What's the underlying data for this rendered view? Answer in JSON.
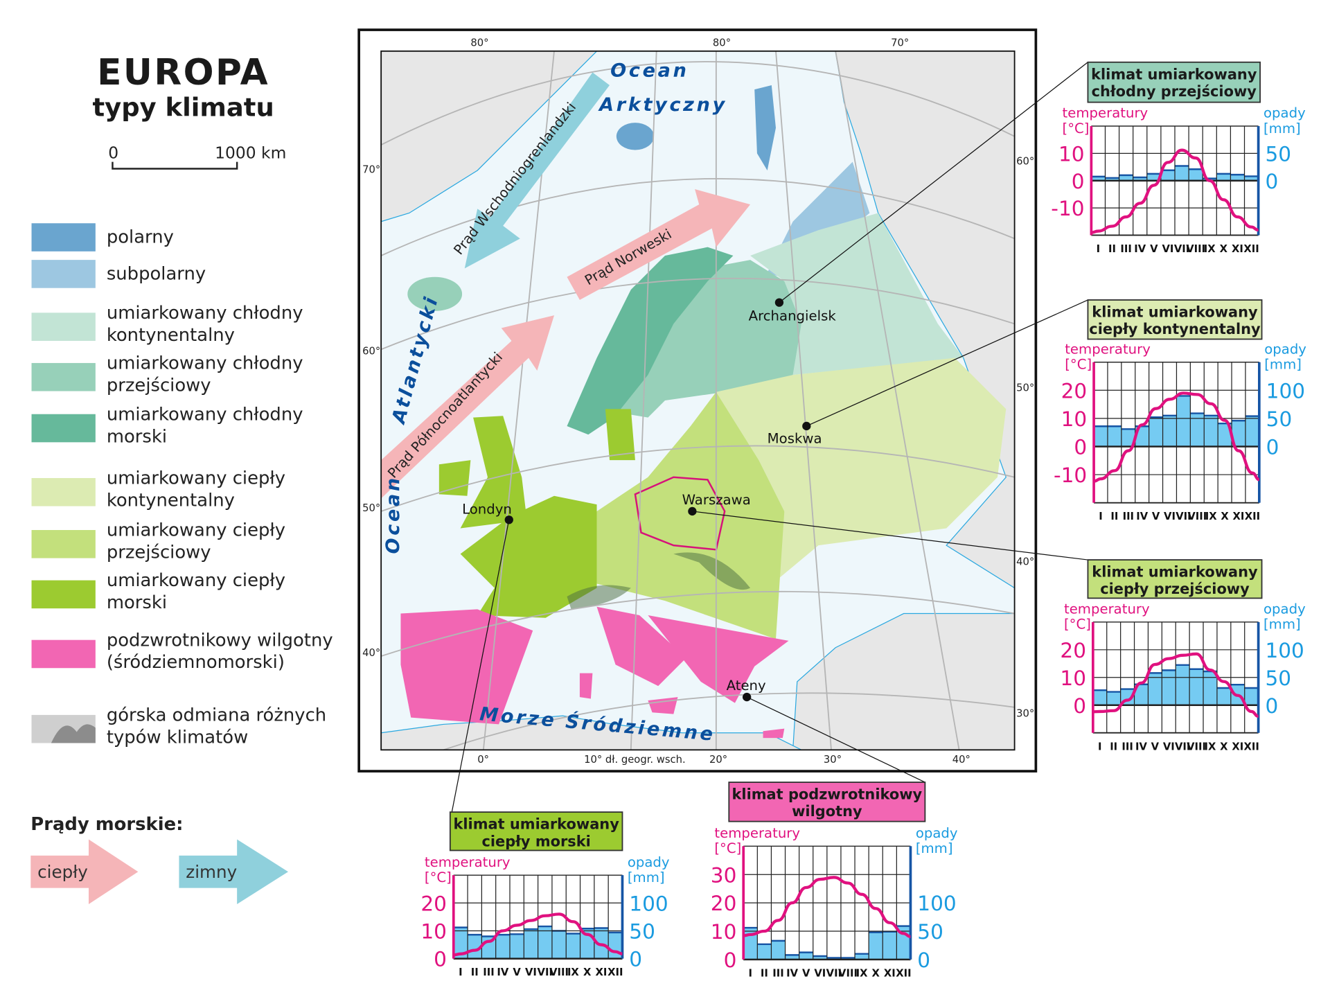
{
  "title": "EUROPA",
  "subtitle": "typy klimatu",
  "scale_bar": {
    "start": "0",
    "end": "1000 km"
  },
  "legend": [
    {
      "lines": [
        "polarny"
      ],
      "color": "#6aa5cf"
    },
    {
      "lines": [
        "subpolarny"
      ],
      "color": "#9dc7e1"
    },
    {
      "lines": [
        "umiarkowany chłodny",
        "kontynentalny"
      ],
      "color": "#c2e4d5"
    },
    {
      "lines": [
        "umiarkowany chłodny",
        "przejściowy"
      ],
      "color": "#97d0b9"
    },
    {
      "lines": [
        "umiarkowany chłodny",
        "morski"
      ],
      "color": "#66b99b"
    },
    {
      "lines": [
        "umiarkowany ciepły",
        "kontynentalny"
      ],
      "color": "#dcebb2"
    },
    {
      "lines": [
        "umiarkowany ciepły",
        "przejściowy"
      ],
      "color": "#c3e07c"
    },
    {
      "lines": [
        "umiarkowany ciepły",
        "morski"
      ],
      "color": "#9ccb30"
    },
    {
      "lines": [
        "podzwrotnikowy wilgotny",
        "(śródziemnomorski)"
      ],
      "color": "#f266b3"
    },
    {
      "lines": [
        "górska odmiana różnych",
        "typów klimatów"
      ],
      "color": "#bdbdbd"
    }
  ],
  "currents_legend": {
    "heading": "Prądy morskie:",
    "warm": "ciepły",
    "cold": "zimny",
    "warm_color": "#f5b5b8",
    "cold_color": "#8fd0dc"
  },
  "map": {
    "oceans": {
      "arctic_1": "Ocean",
      "arctic_2": "Arktyczny",
      "atlantic_1": "Ocean",
      "atlantic_2": "Atlantycki",
      "med": "Morze Śródziemne"
    },
    "currents": {
      "east_greenland": "Prąd Wschodniogrenlandzki",
      "norwegian": "Prąd Norweski",
      "north_atlantic": "Prąd Północnoatlantycki"
    },
    "cities": {
      "archangielsk": "Archangielsk",
      "moskwa": "Moskwa",
      "warszawa": "Warszawa",
      "londyn": "Londyn",
      "ateny": "Ateny"
    },
    "degrees": {
      "top": [
        "80°",
        "80°",
        "70°"
      ],
      "left": [
        "70°",
        "60°",
        "50°",
        "40°"
      ],
      "right": [
        "60°",
        "50°",
        "40°",
        "30°"
      ],
      "bottom": [
        "0°",
        "10° dł. geogr. wsch.",
        "20°",
        "30°",
        "40°"
      ]
    }
  },
  "chart_data": [
    {
      "type": "bar+line",
      "title": [
        "klimat umiarkowany",
        "chłodny przejściowy"
      ],
      "header_color": "#97d0b9",
      "temp_label": "temperatury",
      "temp_unit": "[°C]",
      "precip_label": "opady",
      "precip_unit": "[mm]",
      "months": [
        "I",
        "II",
        "III",
        "IV",
        "V",
        "VI",
        "VII",
        "VIII",
        "IX",
        "X",
        "XI",
        "XII"
      ],
      "temperature": [
        -18.5,
        -16.7,
        -13.3,
        -8.3,
        -1.7,
        6.7,
        11.2,
        8.3,
        0,
        -7,
        -13.3,
        -17
      ],
      "precipitation": [
        7.5,
        5,
        10,
        6,
        12.5,
        19,
        27,
        21,
        4,
        12.5,
        11,
        8
      ],
      "temp_range": [
        -20,
        20
      ],
      "temp_ticks": [
        10,
        0,
        -10
      ],
      "precip_ticks": [
        50,
        0
      ]
    },
    {
      "type": "bar+line",
      "title": [
        "klimat umiarkowany",
        "ciepły kontynentalny"
      ],
      "header_color": "#dcebb2",
      "temp_label": "temperatury",
      "temp_unit": "[°C]",
      "precip_label": "opady",
      "precip_unit": "[mm]",
      "months": [
        "I",
        "II",
        "III",
        "IV",
        "V",
        "VI",
        "VII",
        "VIII",
        "IX",
        "X",
        "XI",
        "XII"
      ],
      "temperature": [
        -11.5,
        -8.6,
        -1.5,
        7.7,
        13.5,
        16.8,
        19,
        18.5,
        15.2,
        9.3,
        -1.5,
        -9.4
      ],
      "precipitation": [
        36,
        36,
        31,
        36,
        52,
        55,
        90,
        59,
        55,
        41,
        46,
        54
      ],
      "temp_range": [
        -20,
        30
      ],
      "temp_ticks": [
        20,
        10,
        0,
        -10
      ],
      "precip_ticks": [
        100,
        50,
        0
      ]
    },
    {
      "type": "bar+line",
      "title": [
        "klimat umiarkowany",
        "ciepły przejściowy"
      ],
      "header_color": "#c3e07c",
      "temp_label": "temperatury",
      "temp_unit": "[°C]",
      "precip_label": "opady",
      "precip_unit": "[mm]",
      "months": [
        "I",
        "II",
        "III",
        "IV",
        "V",
        "VI",
        "VII",
        "VIII",
        "IX",
        "X",
        "XI",
        "XII"
      ],
      "temperature": [
        -2.3,
        -2,
        1.8,
        8,
        14.7,
        16.8,
        18,
        18.5,
        12.7,
        8.5,
        3.5,
        -2.3
      ],
      "precipitation": [
        27,
        24,
        29,
        37.5,
        58,
        63,
        72.5,
        65,
        61,
        31,
        37,
        31
      ],
      "temp_range": [
        -10,
        30
      ],
      "temp_ticks": [
        20,
        10,
        0
      ],
      "precip_ticks": [
        100,
        50,
        0
      ]
    },
    {
      "type": "bar+line",
      "title": [
        "klimat umiarkowany",
        "ciepły morski"
      ],
      "header_color": "#9ccb30",
      "temp_label": "temperatury",
      "temp_unit": "[°C]",
      "precip_label": "opady",
      "precip_unit": "[mm]",
      "months": [
        "I",
        "II",
        "III",
        "IV",
        "V",
        "VI",
        "VII",
        "VIII",
        "IX",
        "X",
        "XI",
        "XII"
      ],
      "temperature": [
        1.7,
        3,
        6.2,
        10,
        12,
        13.7,
        15.4,
        16,
        13.3,
        8.7,
        5,
        2.5
      ],
      "precipitation": [
        56,
        43,
        40,
        43,
        44,
        53,
        58,
        50,
        45,
        54,
        55,
        47
      ],
      "temp_range": [
        0,
        30
      ],
      "temp_ticks": [
        20,
        10,
        0
      ],
      "precip_ticks": [
        100,
        50,
        0
      ]
    },
    {
      "type": "bar+line",
      "title": [
        "klimat podzwrotnikowy",
        "wilgotny"
      ],
      "header_color": "#f266b3",
      "temp_label": "temperatury",
      "temp_unit": "[°C]",
      "precip_label": "opady",
      "precip_unit": "[mm]",
      "months": [
        "I",
        "II",
        "III",
        "IV",
        "V",
        "VI",
        "VII",
        "VIII",
        "IX",
        "X",
        "XI",
        "XII"
      ],
      "temperature": [
        8.8,
        10,
        13.8,
        20,
        25.4,
        28.3,
        29,
        27,
        23,
        18,
        13,
        9.2
      ],
      "precipitation": [
        56,
        27,
        33,
        8,
        12.5,
        6,
        3,
        3,
        10,
        48,
        49,
        59
      ],
      "temp_range": [
        0,
        40
      ],
      "temp_ticks": [
        30,
        20,
        10,
        0
      ],
      "precip_ticks": [
        100,
        50,
        0
      ]
    }
  ]
}
